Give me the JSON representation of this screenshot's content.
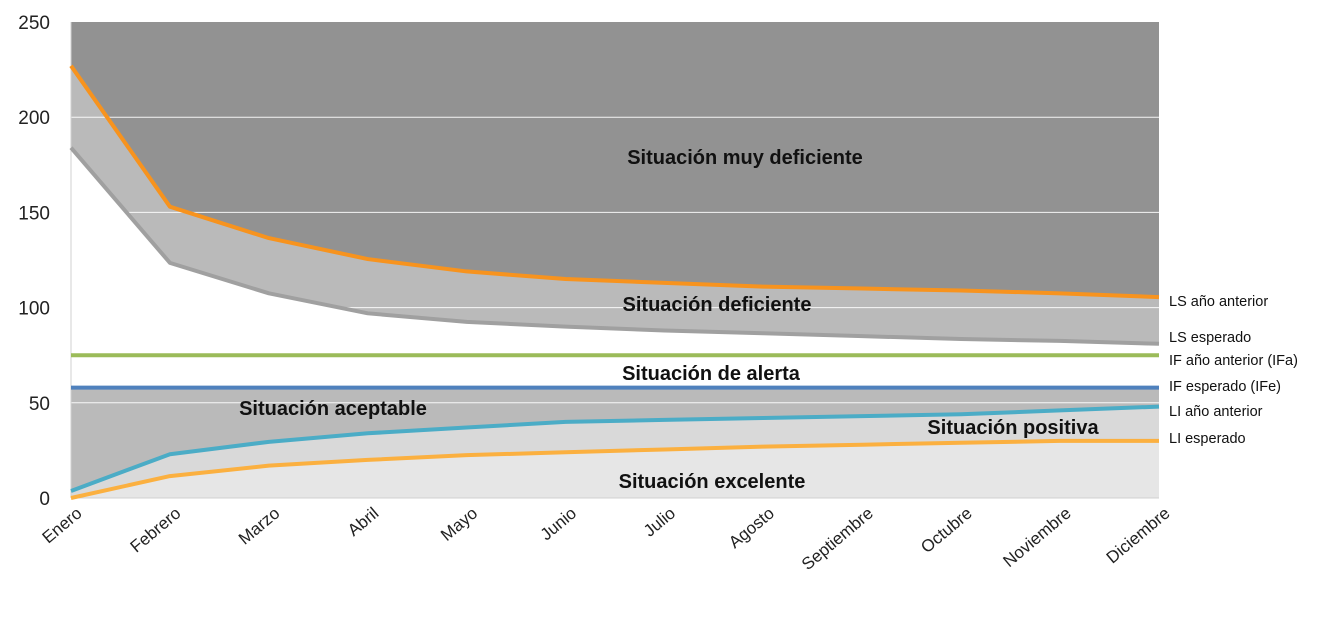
{
  "chart_data": {
    "type": "area",
    "title": "",
    "xlabel": "",
    "ylabel": "",
    "ylim": [
      0,
      250
    ],
    "yticks": [
      0,
      50,
      100,
      150,
      200,
      250
    ],
    "grid": true,
    "categories": [
      "Enero",
      "Febrero",
      "Marzo",
      "Abril",
      "Mayo",
      "Junio",
      "Julio",
      "Agosto",
      "Septiembre",
      "Octubre",
      "Noviembre",
      "Diciembre"
    ],
    "series": [
      {
        "name": "LS año anterior",
        "color": "#f7931e",
        "values": [
          227,
          153,
          136.5,
          125.5,
          119,
          115,
          113,
          111,
          110,
          109,
          107.5,
          105.5
        ]
      },
      {
        "name": "LS esperado",
        "color": "#a0a0a0",
        "values": [
          184,
          123.5,
          107.5,
          97,
          92.5,
          90,
          88,
          86.5,
          85,
          83.5,
          82.5,
          81
        ]
      },
      {
        "name": "IF año anterior (IFa)",
        "color": "#9bbb59",
        "values": [
          75,
          75,
          75,
          75,
          75,
          75,
          75,
          75,
          75,
          75,
          75,
          75
        ]
      },
      {
        "name": "IF esperado (IFe)",
        "color": "#4f81bd",
        "values": [
          58,
          58,
          58,
          58,
          58,
          58,
          58,
          58,
          58,
          58,
          58,
          58
        ]
      },
      {
        "name": "LI año anterior",
        "color": "#4bacc6",
        "values": [
          3.7,
          23,
          29.5,
          34,
          37,
          40,
          41,
          42,
          43,
          44,
          46,
          48
        ]
      },
      {
        "name": "LI esperado",
        "color": "#fbb040",
        "values": [
          0,
          11.5,
          17,
          20,
          22.5,
          24,
          25.5,
          27,
          28,
          29,
          30,
          30
        ]
      }
    ],
    "regions": [
      {
        "label": "Situación muy deficiente",
        "color": "#929292"
      },
      {
        "label": "Situación deficiente",
        "color": "#bababa"
      },
      {
        "label": "Situación de alerta",
        "color": "#ffffff"
      },
      {
        "label": "Situación aceptable",
        "color": "#bababa"
      },
      {
        "label": "Situación positiva",
        "color": "#d9d9d9"
      },
      {
        "label": "Situación excelente",
        "color": "#e6e6e6"
      }
    ],
    "legend_placement": "right, inline labels at line ends"
  }
}
